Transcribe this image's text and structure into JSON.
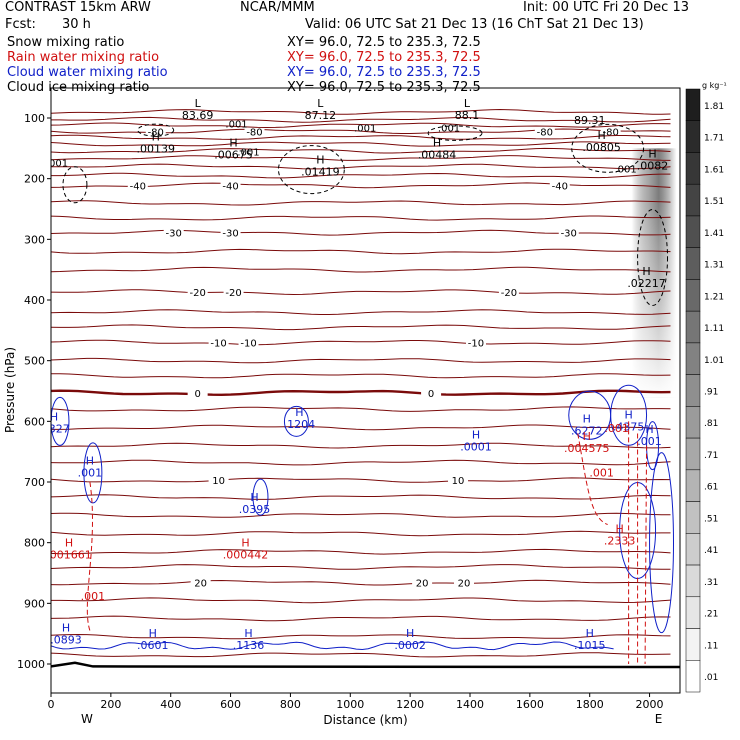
{
  "header": {
    "model": "CONTRAST 15km ARW",
    "org": "NCAR/MMM",
    "init": "Init: 00 UTC Fri 20 Dec 13",
    "fcst_label": "Fcst:",
    "fcst_value": "30 h",
    "valid": "Valid: 06 UTC Sat 21 Dec 13 (16 ChT Sat 21 Dec 13)"
  },
  "fields": [
    {
      "name": "Snow mixing ratio",
      "xy": "XY=  96.0, 72.5 to 235.3, 72.5",
      "color": "#000000"
    },
    {
      "name": "Rain water mixing ratio",
      "xy": "XY=  96.0, 72.5 to 235.3, 72.5",
      "color": "#d01010"
    },
    {
      "name": "Cloud water mixing ratio",
      "xy": "XY=  96.0, 72.5 to 235.3, 72.5",
      "color": "#1020c8"
    },
    {
      "name": "Cloud ice mixing ratio",
      "xy": "XY=  96.0, 72.5 to 235.3, 72.5",
      "color": "#000000"
    }
  ],
  "chart_data": {
    "type": "cross-section contour",
    "xlabel": "Distance (km)",
    "ylabel": "Pressure (hPa)",
    "xlim": [
      0,
      2090
    ],
    "ylim": [
      1010,
      50
    ],
    "x_ticks": [
      "0",
      "200",
      "400",
      "600",
      "800",
      "1000",
      "1200",
      "1400",
      "1600",
      "1800",
      "2000"
    ],
    "y_ticks": [
      "100",
      "200",
      "300",
      "400",
      "500",
      "600",
      "700",
      "800",
      "900",
      "1000"
    ],
    "x_end_labels": {
      "left": "W",
      "right": "E"
    },
    "temperature_contours": [
      {
        "label": "-80",
        "p": 122,
        "label_at": [
          {
            "x": 350
          },
          {
            "x": 680
          },
          {
            "x": 1650
          },
          {
            "x": 1870
          }
        ]
      },
      {
        "label": "-40",
        "p": 211,
        "label_at": [
          {
            "x": 290
          },
          {
            "x": 600
          },
          {
            "x": 1700
          }
        ]
      },
      {
        "label": "-30",
        "p": 289,
        "label_at": [
          {
            "x": 410
          },
          {
            "x": 600
          },
          {
            "x": 1730
          }
        ]
      },
      {
        "label": "-20",
        "p": 387,
        "label_at": [
          {
            "x": 490
          },
          {
            "x": 610
          },
          {
            "x": 1530
          }
        ]
      },
      {
        "label": "-10",
        "p": 470,
        "label_at": [
          {
            "x": 560
          },
          {
            "x": 660
          },
          {
            "x": 1420
          }
        ]
      },
      {
        "label": "0",
        "p": 553,
        "label_at": [
          {
            "x": 490
          },
          {
            "x": 1270
          }
        ]
      },
      {
        "label": "10",
        "p": 697,
        "label_at": [
          {
            "x": 560
          },
          {
            "x": 1360
          }
        ]
      },
      {
        "label": "20",
        "p": 866,
        "label_at": [
          {
            "x": 500
          },
          {
            "x": 1240
          },
          {
            "x": 1380
          }
        ]
      }
    ],
    "highs_lows": [
      {
        "mark": "L",
        "value": "83.69",
        "x": 490,
        "p": 95
      },
      {
        "mark": "L",
        "value": "87.12",
        "x": 900,
        "p": 95
      },
      {
        "mark": "L",
        "value": "88.1",
        "x": 1390,
        "p": 95
      },
      {
        "mark": "",
        "value": "89.31",
        "x": 1800,
        "p": 103
      },
      {
        "mark": "H",
        "value": ".00139",
        "x": 350,
        "p": 150
      },
      {
        "mark": "H",
        "value": ".00675",
        "x": 610,
        "p": 160
      },
      {
        "mark": "H",
        "value": ".00484",
        "x": 1290,
        "p": 160
      },
      {
        "mark": "H",
        "value": ".00805",
        "x": 1840,
        "p": 148
      },
      {
        "mark": "H",
        "value": ".01419",
        "x": 900,
        "p": 188
      },
      {
        "mark": "H",
        "value": ".0082",
        "x": 2010,
        "p": 178
      },
      {
        "mark": "H",
        "value": ".02217",
        "x": 1990,
        "p": 372
      }
    ],
    "snow_contour_labels": [
      ".001",
      ".001",
      ".001",
      ".001",
      ".001",
      ".001"
    ],
    "cloud_water_maxima": [
      {
        "value": ".0327",
        "x": 10,
        "p": 615
      },
      {
        "value": ".1204",
        "x": 830,
        "p": 608
      },
      {
        "value": ".0001",
        "x": 1420,
        "p": 645
      },
      {
        "value": ".6272",
        "x": 1790,
        "p": 618
      },
      {
        "value": ".4375",
        "x": 1930,
        "p": 612
      },
      {
        "value": ".001",
        "x": 2000,
        "p": 636
      },
      {
        "value": ".001",
        "x": 130,
        "p": 688
      },
      {
        "value": ".0395",
        "x": 680,
        "p": 748
      },
      {
        "value": ".0893",
        "x": 50,
        "p": 963
      },
      {
        "value": ".0601",
        "x": 340,
        "p": 972
      },
      {
        "value": ".1136",
        "x": 660,
        "p": 972
      },
      {
        "value": ".0002",
        "x": 1200,
        "p": 972
      },
      {
        "value": ".1015",
        "x": 1800,
        "p": 972
      }
    ],
    "rain_maxima": [
      {
        "value": ".004575",
        "x": 1790,
        "p": 647
      },
      {
        "value": ".001",
        "x": 1890,
        "p": 614
      },
      {
        "value": ".001",
        "x": 1840,
        "p": 688
      },
      {
        "value": ".001661",
        "x": 60,
        "p": 823
      },
      {
        "value": ".000442",
        "x": 650,
        "p": 823
      },
      {
        "value": ".001",
        "x": 140,
        "p": 891
      },
      {
        "value": ".2333",
        "x": 1900,
        "p": 800
      }
    ],
    "colorbar": {
      "unit": "g kg⁻¹",
      "levels": [
        "1.81",
        "1.71",
        "1.61",
        "1.51",
        "1.41",
        "1.31",
        "1.21",
        "1.11",
        "1.01",
        ".91",
        ".81",
        ".71",
        ".61",
        ".51",
        ".41",
        ".31",
        ".21",
        ".11",
        ".01"
      ]
    }
  }
}
